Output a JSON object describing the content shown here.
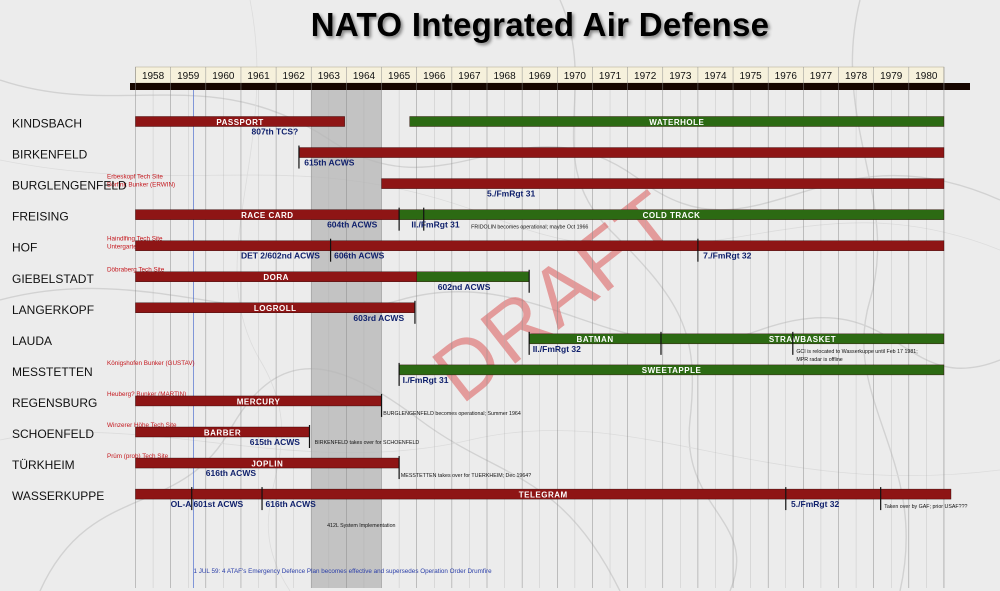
{
  "title": "NATO Integrated Air Defense",
  "watermark": "DRAFT",
  "colors": {
    "red_bar": "#8e1515",
    "green_bar": "#2c6a13",
    "site_note": "#c4161c",
    "unit_label": "#0e1f6b",
    "highlight": "#b6b6b6",
    "header_bg": "#f6f1dc"
  },
  "chart_data": {
    "type": "gantt",
    "title": "NATO Integrated Air Defense",
    "years": [
      "1958",
      "1959",
      "1960",
      "1961",
      "1962",
      "1963",
      "1964",
      "1965",
      "1966",
      "1967",
      "1968",
      "1969",
      "1970",
      "1971",
      "1972",
      "1973",
      "1974",
      "1975",
      "1976",
      "1977",
      "1978",
      "1979",
      "1980"
    ],
    "xlim": [
      1957.9,
      1981.2
    ],
    "highlight_range": [
      1963.0,
      1965.0
    ],
    "rows": [
      {
        "site": "KINDSBACH",
        "note": "",
        "bars": [
          {
            "label": "PASSPORT",
            "color": "red",
            "start": 1958.0,
            "end": 1963.95
          },
          {
            "label": "WATERHOLE",
            "color": "green",
            "start": 1965.8,
            "end": 1981.0
          }
        ],
        "markers": [],
        "labels": [
          {
            "text": "807th TCS?",
            "x": 1961.3,
            "dy": 13,
            "style": "unit"
          }
        ]
      },
      {
        "site": "BIRKENFELD",
        "note": "Erbeskopf Tech Site\nBörfink Bunker (ERWIN)",
        "bars": [
          {
            "label": "",
            "color": "red",
            "start": 1962.65,
            "end": 1981.0
          }
        ],
        "markers": [
          1962.65
        ],
        "labels": [
          {
            "text": "615th ACWS",
            "x": 1962.8,
            "dy": 13,
            "style": "unit"
          }
        ]
      },
      {
        "site": "BURGLENGENFELD",
        "note": "",
        "bars": [
          {
            "label": "",
            "color": "red",
            "start": 1965.0,
            "end": 1981.0
          }
        ],
        "markers": [],
        "labels": [
          {
            "text": "5./FmRgt 31",
            "x": 1968.0,
            "dy": 13,
            "style": "unit"
          }
        ]
      },
      {
        "site": "FREISING",
        "note": "Haindlfing Tech Site\nUntergartelshausen Bunker (FRIDOLIN)",
        "bars": [
          {
            "label": "RACE CARD",
            "color": "red",
            "start": 1958.0,
            "end": 1965.5
          },
          {
            "label": "COLD TRACK",
            "color": "green",
            "start": 1965.5,
            "end": 1981.0
          }
        ],
        "markers": [
          1965.5,
          1966.2
        ],
        "labels": [
          {
            "text": "604th ACWS",
            "x": 1963.45,
            "dy": 13,
            "style": "unit"
          },
          {
            "text": "II./FmRgt 31",
            "x": 1965.85,
            "dy": 13,
            "style": "unit"
          },
          {
            "text": "FRIDOLIN becomes operational; maybe Oct 1966",
            "x": 1967.55,
            "dy": 14,
            "style": "small"
          }
        ]
      },
      {
        "site": "HOF",
        "note": "Döbraberg Tech Site",
        "bars": [
          {
            "label": "",
            "color": "red",
            "start": 1958.0,
            "end": 1981.0
          }
        ],
        "markers": [
          1963.55,
          1974.0
        ],
        "labels": [
          {
            "text": "DET 2/602nd ACWS",
            "x": 1961.0,
            "dy": 13,
            "style": "unit"
          },
          {
            "text": "606th ACWS",
            "x": 1963.65,
            "dy": 13,
            "style": "unit"
          },
          {
            "text": "7./FmRgt 32",
            "x": 1974.15,
            "dy": 13,
            "style": "unit"
          }
        ]
      },
      {
        "site": "GIEBELSTADT",
        "note": "",
        "bars": [
          {
            "label": "DORA",
            "color": "red",
            "start": 1958.0,
            "end": 1966.0
          },
          {
            "label": "",
            "color": "green",
            "start": 1966.0,
            "end": 1969.2
          }
        ],
        "markers": [
          1969.2
        ],
        "labels": [
          {
            "text": "602nd ACWS",
            "x": 1966.6,
            "dy": 13,
            "style": "unit"
          }
        ]
      },
      {
        "site": "LANGERKOPF",
        "note": "",
        "bars": [
          {
            "label": "LOGROLL",
            "color": "red",
            "start": 1958.0,
            "end": 1965.95
          }
        ],
        "markers": [
          1965.95
        ],
        "labels": [
          {
            "text": "603rd ACWS",
            "x": 1964.2,
            "dy": 13,
            "style": "unit"
          }
        ]
      },
      {
        "site": "LAUDA",
        "note": "Königshofen Bunker (GUSTAV)",
        "bars": [
          {
            "label": "BATMAN",
            "color": "green",
            "start": 1969.2,
            "end": 1972.95
          },
          {
            "label": "STRAWBASKET",
            "color": "green",
            "start": 1972.95,
            "end": 1981.0
          }
        ],
        "markers": [
          1969.2,
          1972.95,
          1976.7
        ],
        "labels": [
          {
            "text": "II./FmRgt 32",
            "x": 1969.3,
            "dy": 13,
            "style": "unit"
          },
          {
            "text": "GCI is relocated to Wasserkuppe until Feb 17 1981;\nMPR radar is offline",
            "x": 1976.8,
            "dy": 14,
            "style": "small"
          }
        ]
      },
      {
        "site": "MESSTETTEN",
        "note": "Heuberg? Bunker (MARTIN)",
        "bars": [
          {
            "label": "SWEETAPPLE",
            "color": "green",
            "start": 1965.5,
            "end": 1981.0
          }
        ],
        "markers": [
          1965.5
        ],
        "labels": [
          {
            "text": "I./FmRgt 31",
            "x": 1965.6,
            "dy": 13,
            "style": "unit"
          }
        ]
      },
      {
        "site": "REGENSBURG",
        "note": "Winzerer Höhe Tech Site",
        "bars": [
          {
            "label": "MERCURY",
            "color": "red",
            "start": 1958.0,
            "end": 1965.0
          }
        ],
        "markers": [
          1965.0
        ],
        "labels": [
          {
            "text": "BURGLENGENFELD becomes operational; Summer 1964",
            "x": 1965.05,
            "dy": 14,
            "style": "small"
          }
        ]
      },
      {
        "site": "SCHOENFELD",
        "note": "Prüm (prob) Tech Site",
        "bars": [
          {
            "label": "BARBER",
            "color": "red",
            "start": 1958.0,
            "end": 1962.95
          }
        ],
        "markers": [
          1962.95
        ],
        "labels": [
          {
            "text": "615th ACWS",
            "x": 1961.25,
            "dy": 13,
            "style": "unit"
          },
          {
            "text": "BIRKENFELD takes over for SCHOENFELD",
            "x": 1963.1,
            "dy": 12,
            "style": "small"
          }
        ]
      },
      {
        "site": "TÜRKHEIM",
        "note": "",
        "bars": [
          {
            "label": "JOPLIN",
            "color": "red",
            "start": 1958.0,
            "end": 1965.5
          }
        ],
        "markers": [
          1965.5
        ],
        "labels": [
          {
            "text": "616th ACWS",
            "x": 1960.0,
            "dy": 13,
            "style": "unit"
          },
          {
            "text": "MESSTETTEN takes over for TUERKHEIM; Dec 1964?",
            "x": 1965.55,
            "dy": 14,
            "style": "small"
          }
        ]
      },
      {
        "site": "WASSERKUPPE",
        "note": "",
        "bars": [
          {
            "label": "TELEGRAM",
            "color": "red",
            "start": 1958.0,
            "end": 1981.2
          }
        ],
        "markers": [
          1959.6,
          1961.6,
          1976.5,
          1979.2
        ],
        "labels": [
          {
            "text": "OL-A 601st ACWS",
            "x": 1959.0,
            "dy": 13,
            "style": "unit"
          },
          {
            "text": "616th ACWS",
            "x": 1961.7,
            "dy": 13,
            "style": "unit"
          },
          {
            "text": "5./FmRgt 32",
            "x": 1976.65,
            "dy": 13,
            "style": "unit"
          },
          {
            "text": "Taken over by GAF; prior USAF???",
            "x": 1979.3,
            "dy": 14,
            "style": "small"
          }
        ]
      }
    ],
    "annotations": [
      {
        "text": "412L System Implementation",
        "x": 1963.45,
        "y": 527,
        "style": "small"
      },
      {
        "text": "1 JUL 59: 4 ATAF's Emergency Defence Plan becomes effective and supersedes Operation Order Drumfire",
        "x": 1959.65,
        "y": 573,
        "style": "note"
      }
    ]
  }
}
